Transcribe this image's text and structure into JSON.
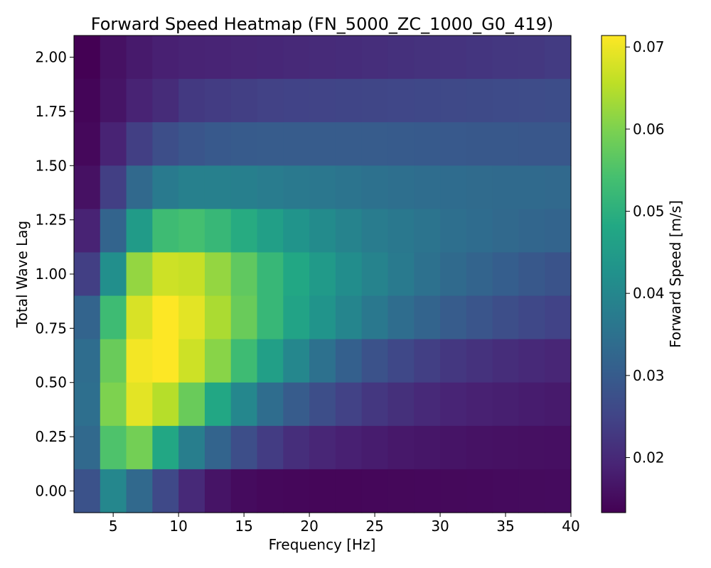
{
  "chart_data": {
    "type": "heatmap",
    "title": "Forward Speed Heatmap (FN_5000_ZC_1000_G0_419)",
    "xlabel": "Frequency [Hz]",
    "ylabel": "Total Wave Lag",
    "colorbar_label": "Forward Speed [m/s]",
    "colormap": "viridis",
    "x_centers": [
      3,
      5,
      7,
      9,
      11,
      13,
      15,
      17,
      19,
      21,
      23,
      25,
      27,
      29,
      31,
      33,
      35,
      37,
      39
    ],
    "y_centers": [
      2.0,
      1.8,
      1.6,
      1.4,
      1.2,
      1.0,
      0.8,
      0.6,
      0.4,
      0.2,
      0.0
    ],
    "xlim": [
      2,
      40
    ],
    "ylim": [
      -0.1,
      2.1
    ],
    "xticks": [
      5,
      10,
      15,
      20,
      25,
      30,
      35,
      40
    ],
    "yticks": [
      0.0,
      0.25,
      0.5,
      0.75,
      1.0,
      1.25,
      1.5,
      1.75,
      2.0
    ],
    "ytick_labels": [
      "0.00",
      "0.25",
      "0.50",
      "0.75",
      "1.00",
      "1.25",
      "1.50",
      "1.75",
      "2.00"
    ],
    "vmin": 0.0133,
    "vmax": 0.0714,
    "colorbar_ticks": [
      0.02,
      0.03,
      0.04,
      0.05,
      0.06,
      0.07
    ],
    "colorbar_tick_labels": [
      "0.02",
      "0.03",
      "0.04",
      "0.05",
      "0.06",
      "0.07"
    ],
    "values": [
      [
        0.0133,
        0.016,
        0.0175,
        0.0185,
        0.019,
        0.0192,
        0.0195,
        0.0197,
        0.02,
        0.0203,
        0.0206,
        0.021,
        0.0213,
        0.0216,
        0.0219,
        0.0222,
        0.0225,
        0.0228,
        0.0232
      ],
      [
        0.014,
        0.0165,
        0.019,
        0.0205,
        0.023,
        0.0235,
        0.024,
        0.0245,
        0.0248,
        0.025,
        0.0252,
        0.0254,
        0.0256,
        0.0258,
        0.026,
        0.0262,
        0.0264,
        0.0266,
        0.0268
      ],
      [
        0.0145,
        0.019,
        0.024,
        0.027,
        0.0285,
        0.0295,
        0.0298,
        0.03,
        0.03,
        0.03,
        0.03,
        0.03,
        0.0298,
        0.0296,
        0.0294,
        0.0292,
        0.0292,
        0.029,
        0.029
      ],
      [
        0.016,
        0.024,
        0.033,
        0.037,
        0.0385,
        0.0385,
        0.0382,
        0.0375,
        0.0368,
        0.0362,
        0.0356,
        0.035,
        0.0345,
        0.034,
        0.0338,
        0.0336,
        0.0334,
        0.0332,
        0.033
      ],
      [
        0.019,
        0.032,
        0.045,
        0.053,
        0.054,
        0.052,
        0.049,
        0.046,
        0.043,
        0.041,
        0.039,
        0.0375,
        0.0365,
        0.0355,
        0.0345,
        0.0338,
        0.033,
        0.0324,
        0.0318
      ],
      [
        0.024,
        0.042,
        0.062,
        0.067,
        0.0665,
        0.062,
        0.057,
        0.052,
        0.048,
        0.0445,
        0.0415,
        0.039,
        0.037,
        0.035,
        0.0332,
        0.0318,
        0.0305,
        0.0292,
        0.0282
      ],
      [
        0.032,
        0.053,
        0.068,
        0.0714,
        0.069,
        0.064,
        0.058,
        0.052,
        0.047,
        0.043,
        0.0395,
        0.0365,
        0.034,
        0.0318,
        0.03,
        0.0285,
        0.027,
        0.0258,
        0.0248
      ],
      [
        0.034,
        0.058,
        0.0705,
        0.0714,
        0.067,
        0.061,
        0.053,
        0.046,
        0.04,
        0.035,
        0.031,
        0.028,
        0.0258,
        0.024,
        0.0226,
        0.0216,
        0.0208,
        0.02,
        0.0195
      ],
      [
        0.0345,
        0.06,
        0.069,
        0.065,
        0.058,
        0.048,
        0.04,
        0.034,
        0.03,
        0.027,
        0.0245,
        0.0225,
        0.0212,
        0.02,
        0.0192,
        0.0186,
        0.0182,
        0.0178,
        0.0175
      ],
      [
        0.033,
        0.055,
        0.059,
        0.048,
        0.038,
        0.032,
        0.027,
        0.0235,
        0.021,
        0.0195,
        0.0185,
        0.0178,
        0.0172,
        0.0168,
        0.0165,
        0.0162,
        0.016,
        0.0158,
        0.0157
      ],
      [
        0.028,
        0.04,
        0.033,
        0.026,
        0.02,
        0.0165,
        0.015,
        0.0145,
        0.0143,
        0.0142,
        0.0142,
        0.0143,
        0.0144,
        0.0145,
        0.0146,
        0.0147,
        0.0148,
        0.0149,
        0.015
      ]
    ]
  }
}
